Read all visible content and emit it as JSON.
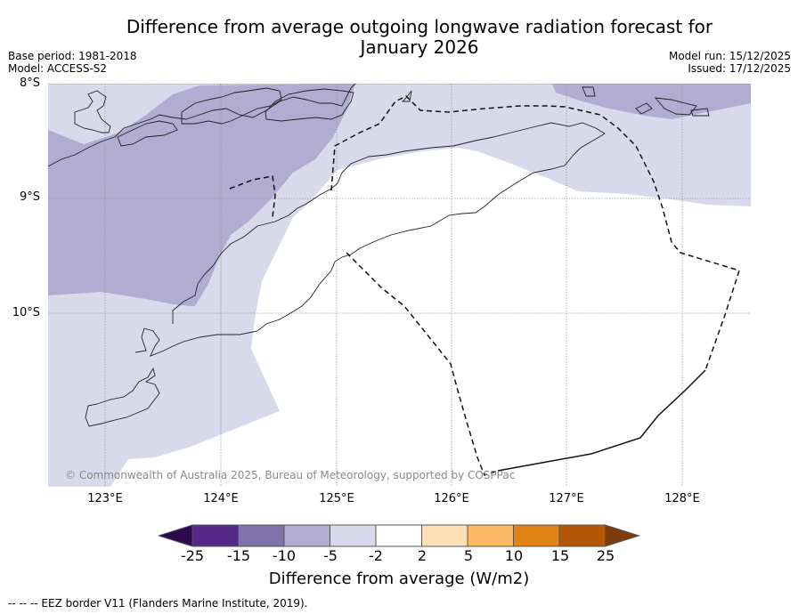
{
  "title_line1": "Difference from average outgoing longwave radiation forecast for",
  "title_line2": "January 2026",
  "meta": {
    "base_period": "Base period: 1981-2018",
    "model": "Model: ACCESS-S2",
    "model_run": "Model run: 15/12/2025",
    "issued": "Issued: 17/12/2025"
  },
  "axes": {
    "lat_labels": [
      "8°S",
      "9°S",
      "10°S"
    ],
    "lon_labels": [
      "123°E",
      "124°E",
      "125°E",
      "126°E",
      "127°E",
      "128°E"
    ]
  },
  "copyright": "© Commonwealth of Australia 2025, Bureau of Meteorology, supported by COSPPac",
  "colorbar": {
    "ticks": [
      "-25",
      "-15",
      "-10",
      "-5",
      "-2",
      "2",
      "5",
      "10",
      "15",
      "25"
    ],
    "label": "Difference from average (W/m2)",
    "colors": {
      "under": "#2d0a4e",
      "bins": [
        "#542788",
        "#8073ac",
        "#b2abd2",
        "#d8daeb",
        "#ffffff",
        "#fee0b6",
        "#fdb863",
        "#e08214",
        "#b35806"
      ],
      "over": "#7f3b08"
    }
  },
  "map_colors": {
    "light_purple": "#d8daeb",
    "mid_purple": "#b2abd2",
    "grid": "#888888",
    "coast": "#222222"
  },
  "footnote": "--  --  -- EEZ border V11 (Flanders Marine Institute, 2019)."
}
